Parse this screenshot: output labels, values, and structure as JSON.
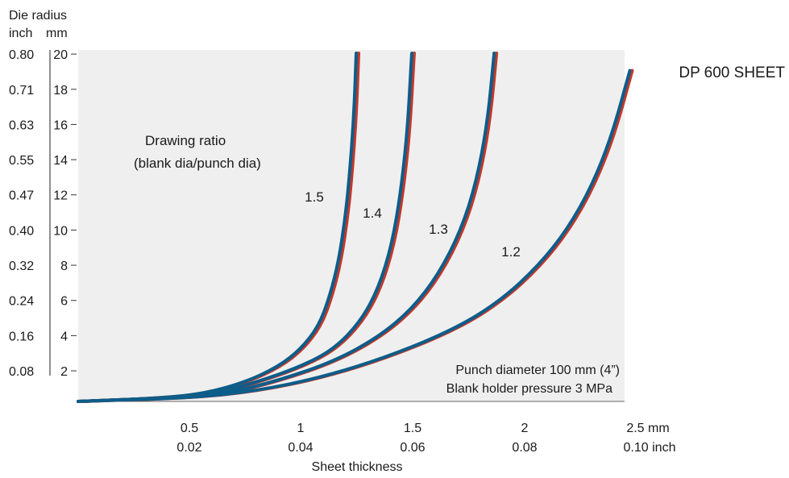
{
  "chart_data": {
    "type": "line",
    "title": "DP 600 SHEET",
    "y_axis_title": "Die radius",
    "y_unit_labels": [
      "inch",
      "mm"
    ],
    "y_mm_ticks": [
      "2",
      "4",
      "6",
      "8",
      "10",
      "12",
      "14",
      "16",
      "18",
      "20"
    ],
    "y_inch_ticks": [
      "0.08",
      "0.16",
      "0.24",
      "0.32",
      "0.40",
      "0.47",
      "0.55",
      "0.63",
      "0.71",
      "0.80"
    ],
    "ylim": [
      0,
      20
    ],
    "x_axis_title": "Sheet thickness",
    "x_mm_ticks": [
      "0.5",
      "1",
      "1.5",
      "2",
      "2.5 mm"
    ],
    "x_inch_ticks": [
      "0.02",
      "0.04",
      "0.06",
      "0.08",
      "0.10 inch"
    ],
    "xlim": [
      0,
      2.5
    ],
    "legend_title_line1": "Drawing ratio",
    "legend_title_line2": "(blank dia/punch dia)",
    "note_line1": "Punch diameter 100 mm (4”)",
    "note_line2": "Blank holder pressure 3 MPa",
    "colors": {
      "line_outer": "#c0392b",
      "line_inner": "#0c5d8a",
      "plot_bg": "#efefef"
    },
    "series": [
      {
        "name": "1.5",
        "x": [
          0.0,
          0.3,
          0.55,
          0.75,
          0.9,
          1.0,
          1.08,
          1.13,
          1.17,
          1.2,
          1.22,
          1.24,
          1.25
        ],
        "y": [
          0.0,
          0.15,
          0.4,
          1.1,
          2.0,
          3.0,
          4.3,
          6.0,
          8.0,
          10.5,
          13.0,
          16.5,
          20.0
        ]
      },
      {
        "name": "1.4",
        "x": [
          0.0,
          0.4,
          0.6,
          0.8,
          1.0,
          1.15,
          1.27,
          1.35,
          1.41,
          1.45,
          1.48,
          1.5
        ],
        "y": [
          0.0,
          0.2,
          0.4,
          1.1,
          2.0,
          3.0,
          4.6,
          6.5,
          9.0,
          12.0,
          15.5,
          20.0
        ]
      },
      {
        "name": "1.3",
        "x": [
          0.0,
          0.4,
          0.65,
          0.9,
          1.15,
          1.35,
          1.5,
          1.62,
          1.72,
          1.79,
          1.84,
          1.87
        ],
        "y": [
          0.0,
          0.2,
          0.4,
          1.2,
          2.3,
          3.7,
          5.3,
          7.3,
          9.8,
          12.6,
          16.0,
          20.0
        ]
      },
      {
        "name": "1.2",
        "x": [
          0.0,
          0.5,
          0.8,
          1.1,
          1.4,
          1.7,
          1.9,
          2.07,
          2.2,
          2.31,
          2.4,
          2.48
        ],
        "y": [
          0.0,
          0.2,
          0.6,
          1.4,
          2.6,
          4.2,
          5.8,
          7.8,
          9.9,
          12.4,
          15.3,
          19.0
        ]
      }
    ],
    "grid": false
  }
}
